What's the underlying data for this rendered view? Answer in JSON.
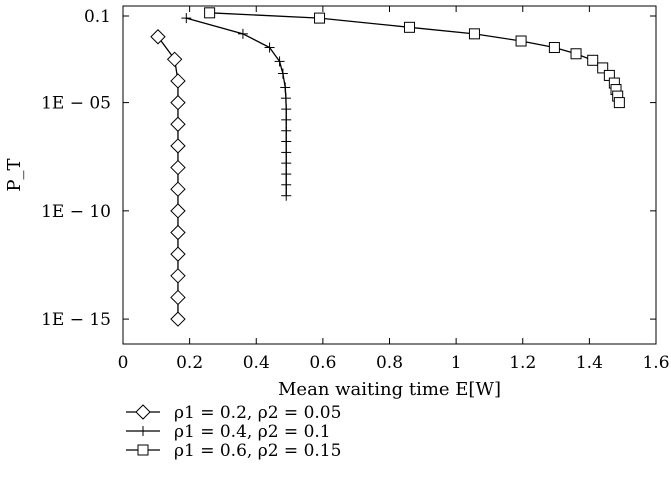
{
  "chart_data": {
    "type": "line",
    "xlabel": "Mean waiting time E[W]",
    "ylabel": "P_T",
    "y_scale": "log",
    "xlim": [
      0,
      1.6
    ],
    "ylim": [
      1e-16,
      0.1
    ],
    "x_ticks": [
      0,
      0.2,
      0.4,
      0.6,
      0.8,
      1,
      1.2,
      1.4,
      1.6
    ],
    "x_tick_labels": [
      "0",
      "0.2",
      "0.4",
      "0.6",
      "0.8",
      "1",
      "1.2",
      "1.4",
      "1.6"
    ],
    "y_ticks": [
      0.1,
      1e-05,
      1e-10,
      1e-15
    ],
    "y_tick_labels": [
      "0.1",
      "1E − 05",
      "1E − 10",
      "1E − 15"
    ],
    "grid": false,
    "legend_position": "bottom-left, below plot",
    "series": [
      {
        "name": "ρ1 = 0.2, ρ2 = 0.05",
        "marker": "diamond",
        "points": [
          [
            0.105,
            0.011
          ],
          [
            0.155,
            0.001
          ],
          [
            0.165,
            0.0001
          ],
          [
            0.165,
            1e-05
          ],
          [
            0.165,
            1e-06
          ],
          [
            0.165,
            1e-07
          ],
          [
            0.165,
            1e-08
          ],
          [
            0.165,
            1e-09
          ],
          [
            0.165,
            1e-10
          ],
          [
            0.165,
            1e-11
          ],
          [
            0.165,
            1e-12
          ],
          [
            0.165,
            1e-13
          ],
          [
            0.165,
            1e-14
          ],
          [
            0.165,
            1e-15
          ]
        ]
      },
      {
        "name": "ρ1 = 0.4, ρ2 = 0.1",
        "marker": "plus",
        "points": [
          [
            0.19,
            0.08
          ],
          [
            0.36,
            0.015
          ],
          [
            0.44,
            0.0035
          ],
          [
            0.47,
            0.0008
          ],
          [
            0.48,
            0.00022
          ],
          [
            0.487,
            5e-05
          ],
          [
            0.489,
            1.6e-05
          ],
          [
            0.49,
            5e-06
          ],
          [
            0.49,
            1.6e-06
          ],
          [
            0.49,
            5e-07
          ],
          [
            0.49,
            1.6e-07
          ],
          [
            0.49,
            5e-08
          ],
          [
            0.49,
            1.6e-08
          ],
          [
            0.49,
            5e-09
          ],
          [
            0.49,
            1.6e-09
          ],
          [
            0.49,
            5e-10
          ]
        ]
      },
      {
        "name": "ρ1 = 0.6, ρ2 = 0.15",
        "marker": "square",
        "points": [
          [
            0.26,
            0.14
          ],
          [
            0.59,
            0.08
          ],
          [
            0.86,
            0.03
          ],
          [
            1.055,
            0.015
          ],
          [
            1.195,
            0.007
          ],
          [
            1.295,
            0.0035
          ],
          [
            1.36,
            0.0018
          ],
          [
            1.41,
            0.0009
          ],
          [
            1.44,
            0.0004
          ],
          [
            1.46,
            0.00018
          ],
          [
            1.475,
            8e-05
          ],
          [
            1.48,
            4e-05
          ],
          [
            1.485,
            2e-05
          ],
          [
            1.49,
            1e-05
          ]
        ]
      }
    ]
  }
}
